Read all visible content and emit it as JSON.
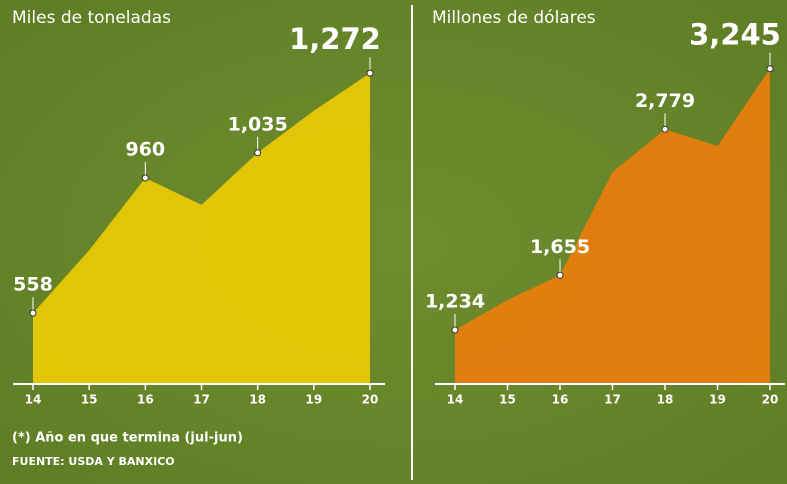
{
  "chart_data": [
    {
      "type": "area",
      "title": "Miles de toneladas",
      "categories": [
        "14",
        "15",
        "16",
        "17",
        "18",
        "19",
        "20"
      ],
      "values": [
        558,
        745,
        960,
        880,
        1035,
        1160,
        1272
      ],
      "value_labels": [
        "558",
        null,
        "960",
        null,
        "1,035",
        null,
        "1,272"
      ],
      "color": "#f2cf00",
      "ylim": [
        350,
        1430
      ]
    },
    {
      "type": "area",
      "title": "Millones de dólares",
      "categories": [
        "14",
        "15",
        "16",
        "17",
        "18",
        "19",
        "20"
      ],
      "values": [
        1234,
        1465,
        1655,
        2450,
        2779,
        2650,
        3245
      ],
      "value_labels": [
        "1,234",
        null,
        "1,655",
        null,
        "2,779",
        null,
        "3,245"
      ],
      "color": "#f07c0a",
      "ylim": [
        826,
        3620
      ]
    }
  ],
  "footnote": "(*) Año en que termina (jul-jun)",
  "source": "FUENTE: USDA Y BANXICO"
}
